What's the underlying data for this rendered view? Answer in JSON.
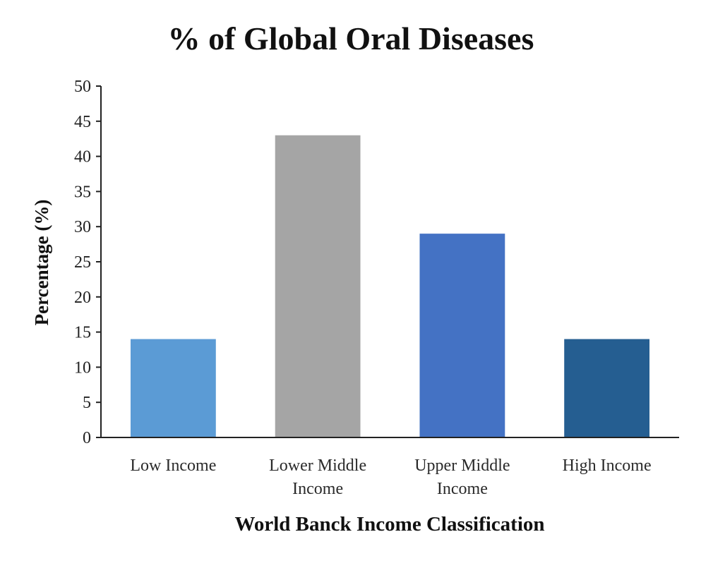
{
  "chart_data": {
    "type": "bar",
    "title": "% of Global Oral Diseases",
    "xlabel": "World Banck Income Classification",
    "ylabel": "Percentage (%)",
    "ylim": [
      0,
      50
    ],
    "yticks": [
      "0",
      "5",
      "10",
      "15",
      "20",
      "25",
      "30",
      "35",
      "40",
      "45",
      "50"
    ],
    "ytick_values": [
      0,
      5,
      10,
      15,
      20,
      25,
      30,
      35,
      40,
      45,
      50
    ],
    "categories": [
      [
        "Low Income"
      ],
      [
        "Lower Middle",
        "Income"
      ],
      [
        "Upper Middle",
        "Income"
      ],
      [
        "High Income"
      ]
    ],
    "values": [
      14,
      43,
      29,
      14
    ],
    "colors": [
      "#5b9bd5",
      "#a5a5a5",
      "#4472c4",
      "#255e91"
    ],
    "grid": false,
    "legend": "none"
  }
}
